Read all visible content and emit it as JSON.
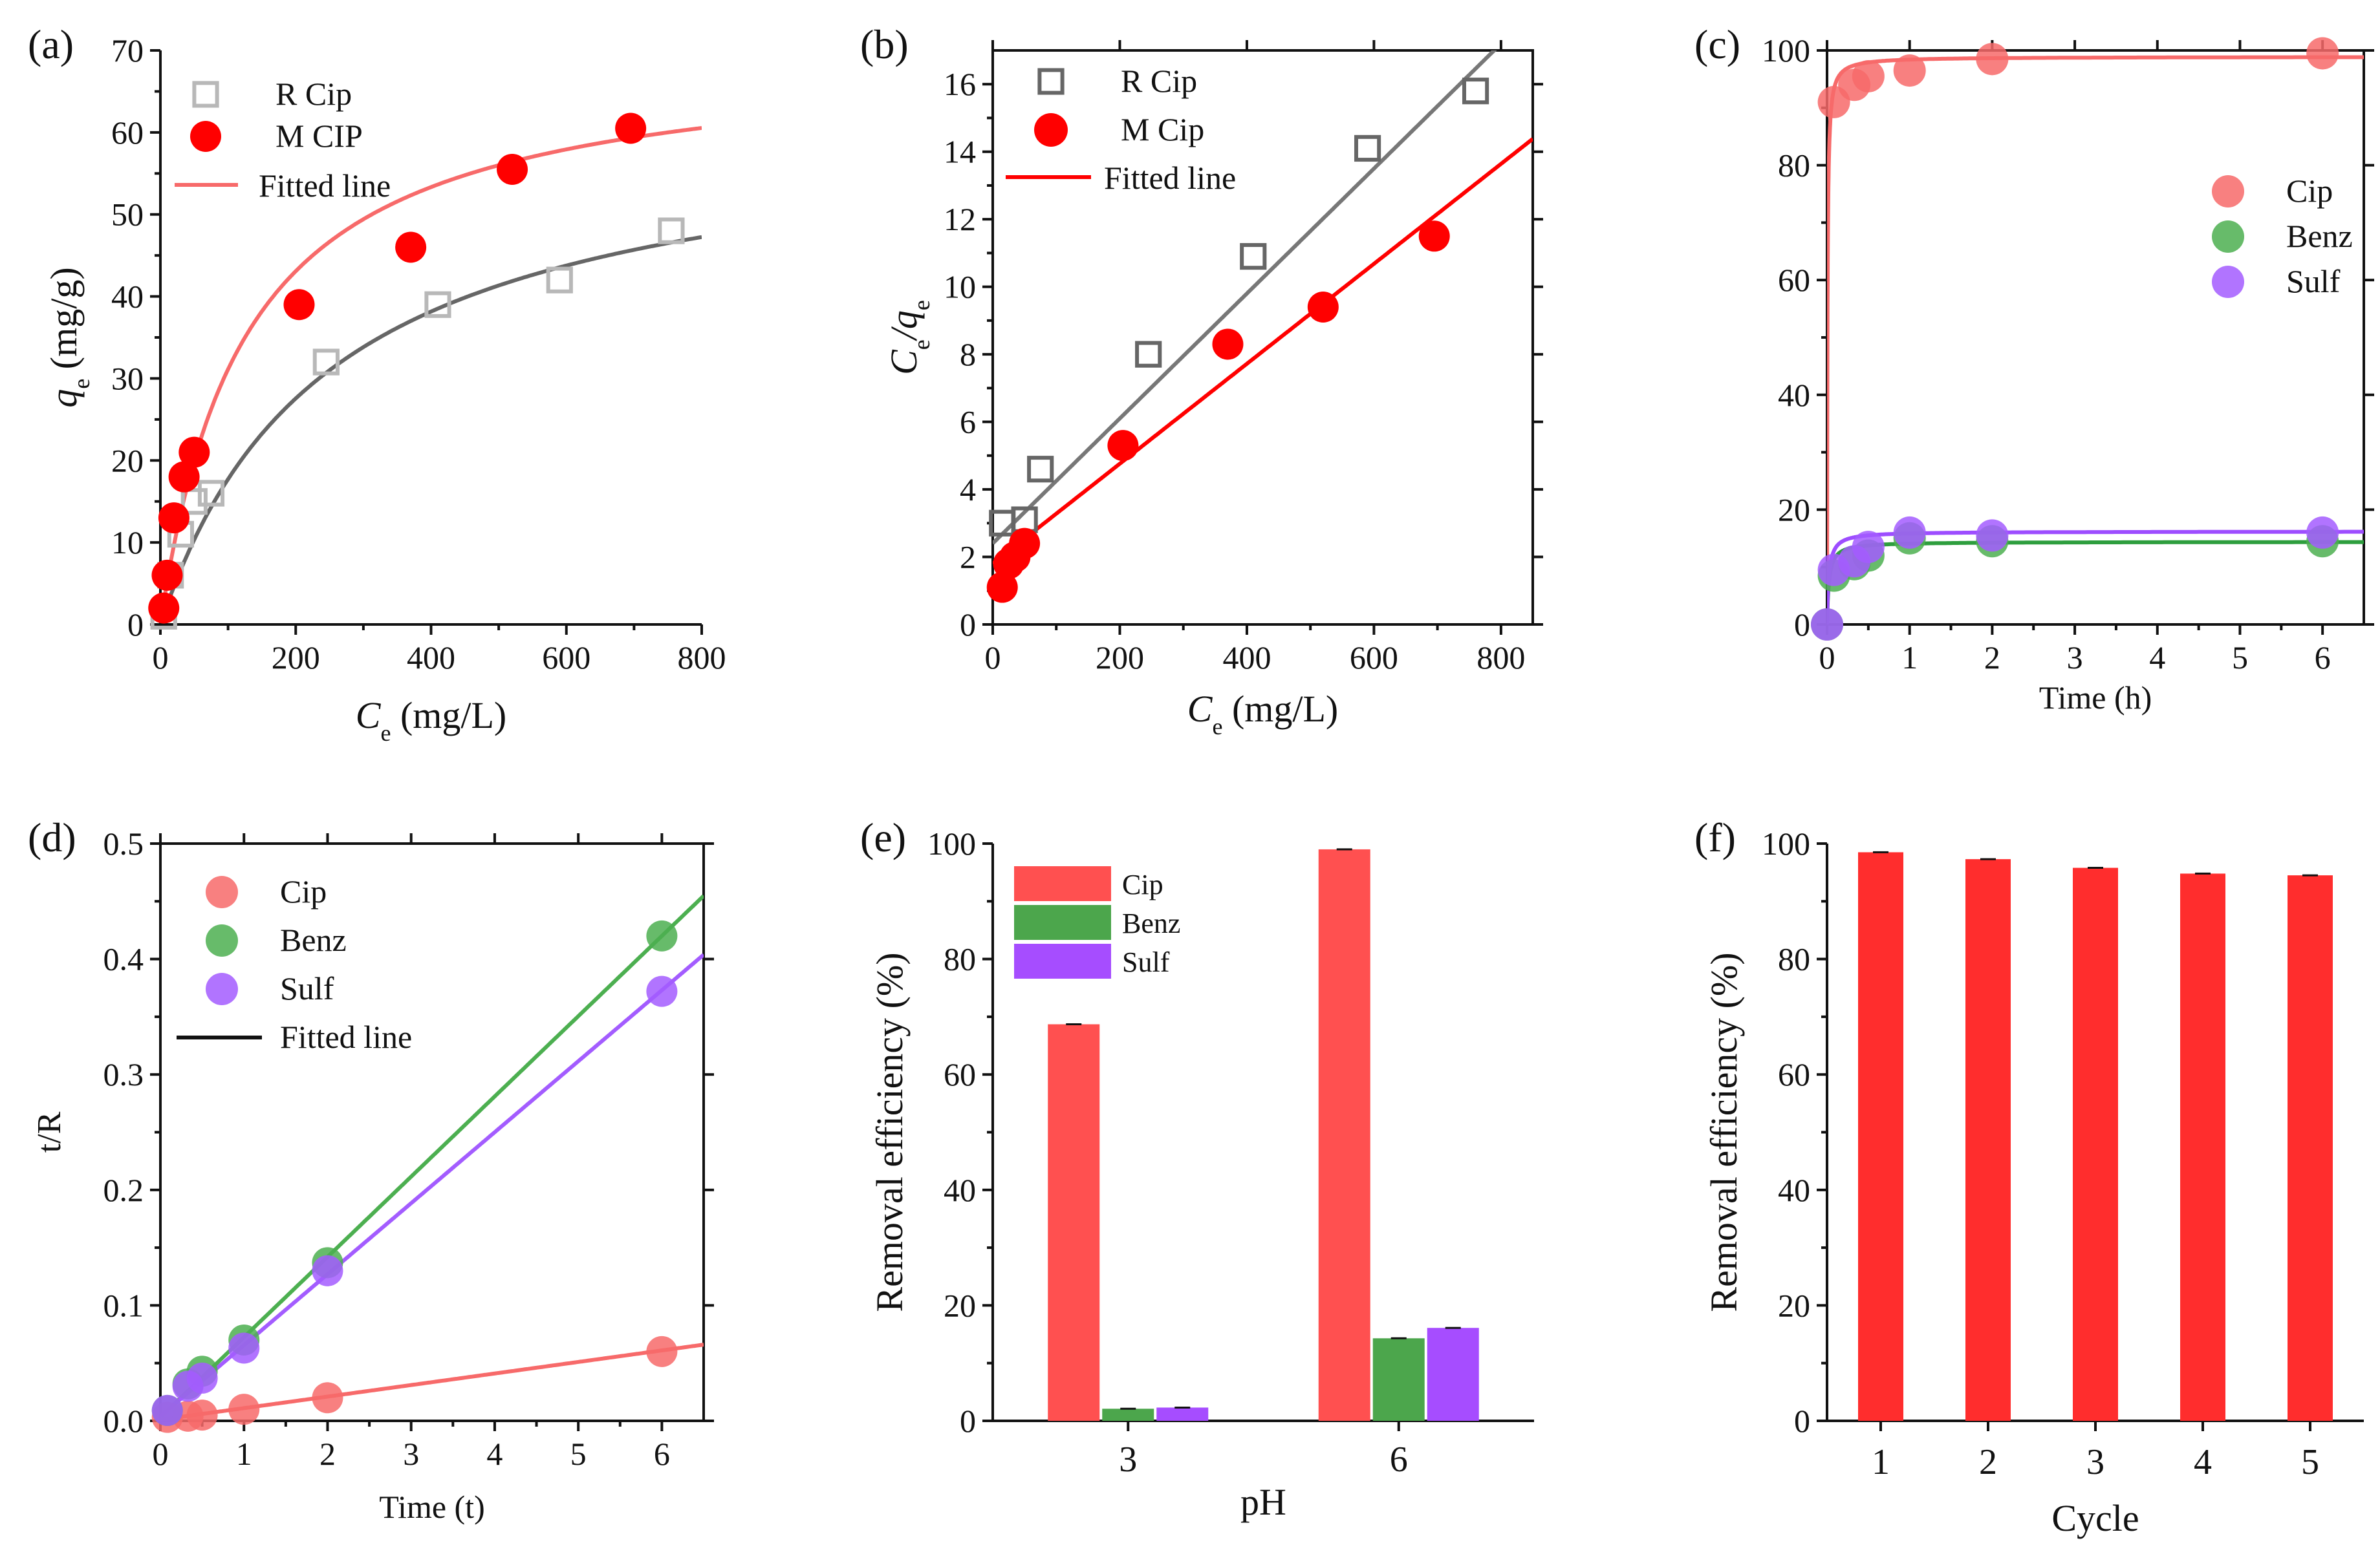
{
  "chart_data": [
    {
      "panel": "(a)",
      "type": "scatter",
      "xlabel": "C",
      "xlabel_sub": "e",
      "xlabel_unit": " (mg/L)",
      "ylabel": "q",
      "ylabel_sub": "e",
      "ylabel_unit": " (mg/g)",
      "xlim": [
        0,
        800
      ],
      "ylim": [
        0,
        70
      ],
      "xticks": [
        0,
        200,
        400,
        600,
        800
      ],
      "yticks": [
        0,
        10,
        20,
        30,
        40,
        50,
        60,
        70
      ],
      "legend": [
        "R Cip",
        "M CIP",
        "Fitted line"
      ],
      "legend_position": "top-left",
      "series": [
        {
          "name": "R Cip",
          "marker": "open-square",
          "color": "#b8b8b8",
          "x": [
            5,
            15,
            30,
            50,
            75,
            245,
            410,
            590,
            755
          ],
          "y": [
            1,
            6,
            11,
            15,
            16,
            32,
            39,
            42,
            48
          ]
        },
        {
          "name": "M CIP",
          "marker": "filled-circle",
          "color": "#ff0000",
          "x": [
            5,
            10,
            20,
            35,
            50,
            205,
            370,
            520,
            695
          ],
          "y": [
            2,
            6,
            13,
            18,
            21,
            39,
            46,
            55.5,
            60.5
          ]
        }
      ],
      "fits": [
        {
          "name": "Fitted line (R Cip)",
          "color": "#666666",
          "model": "langmuir",
          "qm": 62,
          "K": 0.004
        },
        {
          "name": "Fitted line (M CIP)",
          "color": "#f76a6a",
          "model": "langmuir",
          "qm": 70,
          "K": 0.008
        }
      ]
    },
    {
      "panel": "(b)",
      "type": "scatter",
      "xlabel": "C",
      "xlabel_sub": "e",
      "xlabel_unit": " (mg/L)",
      "ylabel_parts": [
        "C",
        "e",
        "/q",
        "e"
      ],
      "xlim": [
        0,
        850
      ],
      "ylim": [
        0,
        17
      ],
      "xticks": [
        0,
        200,
        400,
        600,
        800
      ],
      "yticks": [
        0,
        2,
        4,
        6,
        8,
        10,
        12,
        14,
        16
      ],
      "legend": [
        "R Cip",
        "M Cip",
        "Fitted line"
      ],
      "legend_position": "top-left",
      "series": [
        {
          "name": "R Cip",
          "marker": "open-square",
          "color": "#666666",
          "x": [
            15,
            50,
            75,
            245,
            410,
            590,
            760
          ],
          "y": [
            3,
            3.1,
            4.6,
            8,
            10.9,
            14.1,
            15.8
          ]
        },
        {
          "name": "M Cip",
          "marker": "filled-circle",
          "color": "#ff0000",
          "x": [
            15,
            25,
            35,
            50,
            205,
            370,
            520,
            695
          ],
          "y": [
            1.1,
            1.8,
            2,
            2.4,
            5.3,
            8.3,
            9.4,
            11.5
          ]
        }
      ],
      "fits": [
        {
          "name": "Fitted line (R Cip)",
          "color": "#777777",
          "slope": 0.0185,
          "intercept": 2.4
        },
        {
          "name": "Fitted line (M Cip)",
          "color": "#ff0000",
          "slope": 0.0148,
          "intercept": 1.8
        }
      ]
    },
    {
      "panel": "(c)",
      "type": "scatter",
      "xlabel": "Time (h)",
      "ylabel": "",
      "xlim": [
        0,
        6.5
      ],
      "ylim": [
        0,
        100
      ],
      "xticks": [
        0,
        1,
        2,
        3,
        4,
        5,
        6
      ],
      "yticks": [
        0,
        20,
        40,
        60,
        80,
        100
      ],
      "legend": [
        "Cip",
        "Benz",
        "Sulf"
      ],
      "legend_position": "right",
      "series": [
        {
          "name": "Cip",
          "color": "#f76a6a",
          "x": [
            0.083,
            0.33,
            0.5,
            1,
            2,
            6
          ],
          "y": [
            91,
            94,
            95.5,
            96.5,
            98.5,
            99.5
          ]
        },
        {
          "name": "Benz",
          "color": "#4caf50",
          "x": [
            0,
            0.083,
            0.33,
            0.5,
            1,
            2,
            6
          ],
          "y": [
            0,
            8.5,
            10.5,
            12,
            15,
            14.5,
            14.5
          ]
        },
        {
          "name": "Sulf",
          "color": "#a35cff",
          "x": [
            0,
            0.083,
            0.33,
            0.5,
            1,
            2,
            6
          ],
          "y": [
            0,
            9.5,
            11,
            13.5,
            16,
            15.5,
            16
          ]
        }
      ],
      "fits": [
        {
          "name": "Cip",
          "color": "#f76a6a",
          "model": "pso",
          "qe": 98.9,
          "k2": 2.0
        },
        {
          "name": "Benz",
          "color": "#2e9e3e",
          "model": "pso",
          "qe": 14.4,
          "k2": 3.0
        },
        {
          "name": "Sulf",
          "color": "#9d4dff",
          "model": "pso",
          "qe": 16.2,
          "k2": 2.8
        }
      ]
    },
    {
      "panel": "(d)",
      "type": "scatter",
      "xlabel": "Time (t)",
      "ylabel": "t/R",
      "xlim": [
        0,
        6.5
      ],
      "ylim": [
        0,
        0.5
      ],
      "xticks": [
        0,
        1,
        2,
        3,
        4,
        5,
        6
      ],
      "yticks": [
        0.0,
        0.1,
        0.2,
        0.3,
        0.4,
        0.5
      ],
      "ytick_labels": [
        "0.0",
        "0.1",
        "0.2",
        "0.3",
        "0.4",
        "0.5"
      ],
      "legend": [
        "Cip",
        "Benz",
        "Sulf",
        "Fitted line"
      ],
      "legend_position": "top-left",
      "series": [
        {
          "name": "Cip",
          "color": "#f76a6a",
          "x": [
            0.083,
            0.33,
            0.5,
            1,
            2,
            6
          ],
          "y": [
            0.003,
            0.004,
            0.005,
            0.01,
            0.02,
            0.06
          ]
        },
        {
          "name": "Benz",
          "color": "#4caf50",
          "x": [
            0.083,
            0.33,
            0.5,
            1,
            2,
            6
          ],
          "y": [
            0.009,
            0.032,
            0.043,
            0.07,
            0.137,
            0.42
          ]
        },
        {
          "name": "Sulf",
          "color": "#a35cff",
          "x": [
            0.083,
            0.33,
            0.5,
            1,
            2,
            6
          ],
          "y": [
            0.009,
            0.03,
            0.037,
            0.063,
            0.13,
            0.372
          ]
        }
      ],
      "fits": [
        {
          "name": "Cip",
          "color": "#f76a6a",
          "slope": 0.01,
          "intercept": 0.001
        },
        {
          "name": "Benz",
          "color": "#4caf50",
          "slope": 0.0695,
          "intercept": 0.003
        },
        {
          "name": "Sulf",
          "color": "#a35cff",
          "slope": 0.0615,
          "intercept": 0.004
        }
      ]
    },
    {
      "panel": "(e)",
      "type": "bar",
      "xlabel": "pH",
      "ylabel": "Removal efficiency (%)",
      "categories": [
        "3",
        "6"
      ],
      "ylim": [
        0,
        100
      ],
      "yticks": [
        0,
        20,
        40,
        60,
        80,
        100
      ],
      "legend": [
        "Cip",
        "Benz",
        "Sulf"
      ],
      "legend_position": "top-left",
      "series": [
        {
          "name": "Cip",
          "color": "#ff5050",
          "values": [
            68.7,
            99.0
          ]
        },
        {
          "name": "Benz",
          "color": "#4ca64c",
          "values": [
            2.1,
            14.3
          ]
        },
        {
          "name": "Sulf",
          "color": "#a64dff",
          "values": [
            2.3,
            16.1
          ]
        }
      ]
    },
    {
      "panel": "(f)",
      "type": "bar",
      "xlabel": "Cycle",
      "ylabel": "Removal efficiency (%)",
      "categories": [
        "1",
        "2",
        "3",
        "4",
        "5"
      ],
      "ylim": [
        0,
        100
      ],
      "yticks": [
        0,
        20,
        40,
        60,
        80,
        100
      ],
      "series": [
        {
          "name": "Removal",
          "color": "#ff2d2d",
          "values": [
            98.5,
            97.3,
            95.8,
            94.8,
            94.5
          ]
        }
      ]
    }
  ]
}
